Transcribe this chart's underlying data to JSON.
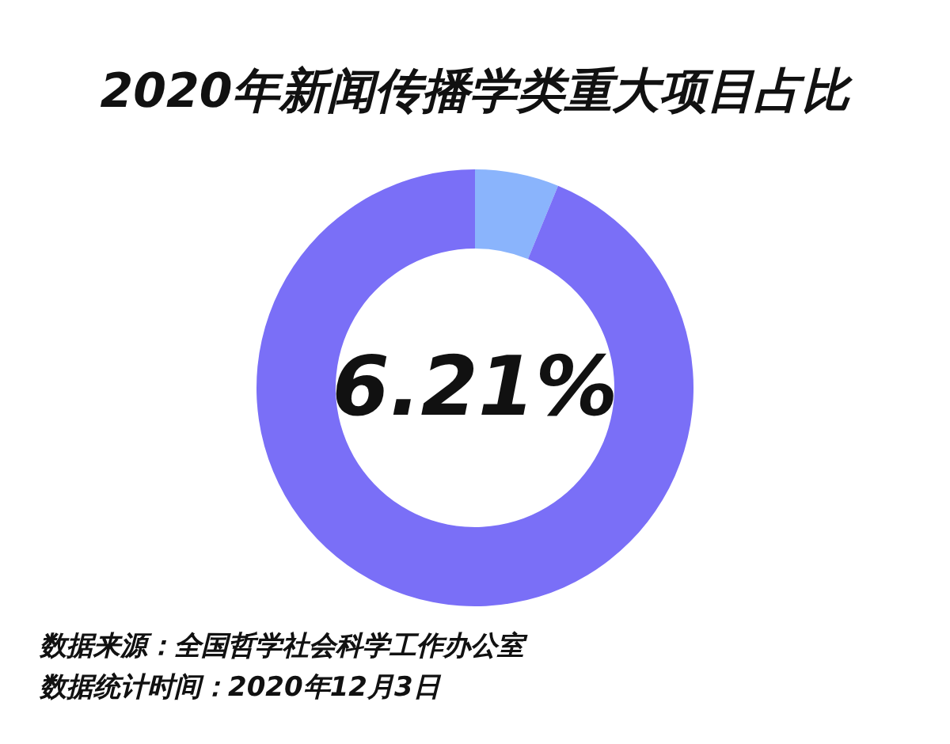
{
  "chart_data": {
    "type": "donut",
    "title": "2020年新闻传播学类重大项目占比",
    "categories": [
      null,
      null
    ],
    "values": [
      6.21,
      93.79
    ],
    "colors": [
      "#8ab4fc",
      "#7a6ff7"
    ],
    "value_labels": [
      "6.21%",
      null
    ],
    "annotations": [
      "数据来源：全国哲学社会科学工作办公室",
      "数据统计时间：2020年12月3日"
    ]
  }
}
